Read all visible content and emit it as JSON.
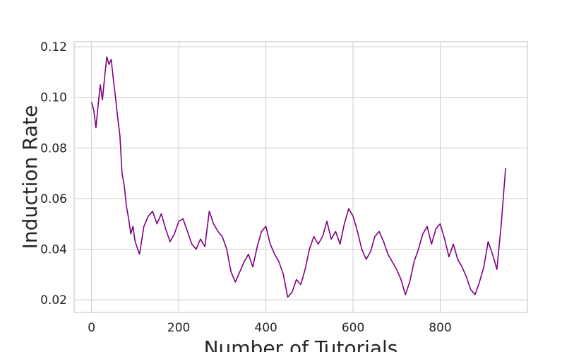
{
  "chart_data": {
    "type": "line",
    "title": "",
    "xlabel": "Number of Tutorials",
    "ylabel": "Induction Rate",
    "xlim": [
      -40,
      1000
    ],
    "ylim": [
      0.015,
      0.122
    ],
    "xticks": [
      0,
      200,
      400,
      600,
      800
    ],
    "xtick_labels": [
      "0",
      "200",
      "400",
      "600",
      "800"
    ],
    "yticks": [
      0.02,
      0.04,
      0.06,
      0.08,
      0.1,
      0.12
    ],
    "ytick_labels": [
      "0.02",
      "0.04",
      "0.06",
      "0.08",
      "0.10",
      "0.12"
    ],
    "grid": true,
    "colors": {
      "line": "#800080",
      "grid": "#cccccc",
      "spine": "#cccccc"
    },
    "series": [
      {
        "x": [
          0,
          5,
          10,
          15,
          20,
          25,
          30,
          35,
          40,
          45,
          50,
          55,
          60,
          65,
          70,
          75,
          80,
          85,
          90,
          95,
          100,
          110,
          120,
          130,
          140,
          150,
          160,
          170,
          180,
          190,
          200,
          210,
          220,
          230,
          240,
          250,
          260,
          270,
          280,
          290,
          300,
          310,
          320,
          330,
          340,
          350,
          360,
          370,
          380,
          390,
          400,
          410,
          420,
          430,
          440,
          450,
          460,
          470,
          480,
          490,
          500,
          510,
          520,
          530,
          540,
          550,
          560,
          570,
          580,
          590,
          600,
          610,
          620,
          630,
          640,
          650,
          660,
          670,
          680,
          690,
          700,
          710,
          720,
          730,
          740,
          750,
          760,
          770,
          780,
          790,
          800,
          810,
          820,
          830,
          840,
          850,
          860,
          870,
          880,
          890,
          900,
          910,
          920,
          930,
          940,
          950
        ],
        "y": [
          0.098,
          0.095,
          0.088,
          0.097,
          0.105,
          0.099,
          0.108,
          0.116,
          0.113,
          0.115,
          0.107,
          0.1,
          0.092,
          0.085,
          0.07,
          0.065,
          0.057,
          0.052,
          0.046,
          0.049,
          0.043,
          0.038,
          0.049,
          0.053,
          0.055,
          0.05,
          0.054,
          0.048,
          0.043,
          0.046,
          0.051,
          0.052,
          0.047,
          0.042,
          0.04,
          0.044,
          0.041,
          0.055,
          0.05,
          0.047,
          0.045,
          0.04,
          0.031,
          0.027,
          0.031,
          0.035,
          0.038,
          0.033,
          0.041,
          0.047,
          0.049,
          0.042,
          0.038,
          0.035,
          0.03,
          0.021,
          0.023,
          0.028,
          0.026,
          0.032,
          0.04,
          0.045,
          0.042,
          0.045,
          0.051,
          0.044,
          0.047,
          0.042,
          0.05,
          0.056,
          0.053,
          0.047,
          0.04,
          0.036,
          0.039,
          0.045,
          0.047,
          0.043,
          0.038,
          0.035,
          0.032,
          0.028,
          0.022,
          0.027,
          0.035,
          0.04,
          0.046,
          0.049,
          0.042,
          0.048,
          0.05,
          0.044,
          0.037,
          0.042,
          0.036,
          0.033,
          0.029,
          0.024,
          0.022,
          0.027,
          0.033,
          0.043,
          0.038,
          0.032,
          0.05,
          0.072
        ]
      }
    ]
  }
}
